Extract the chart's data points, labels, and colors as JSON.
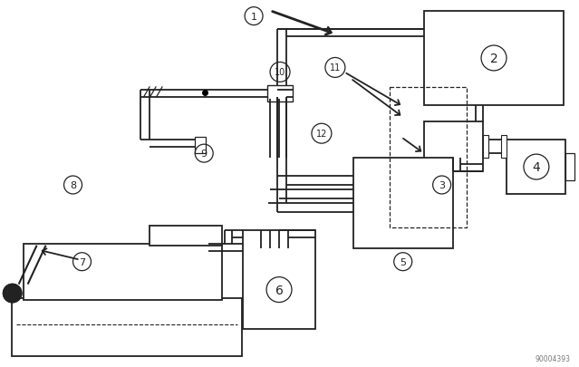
{
  "bg": "#ffffff",
  "lc": "#222222",
  "fig_w": 6.39,
  "fig_h": 4.06,
  "dpi": 100,
  "wm": "90004393"
}
